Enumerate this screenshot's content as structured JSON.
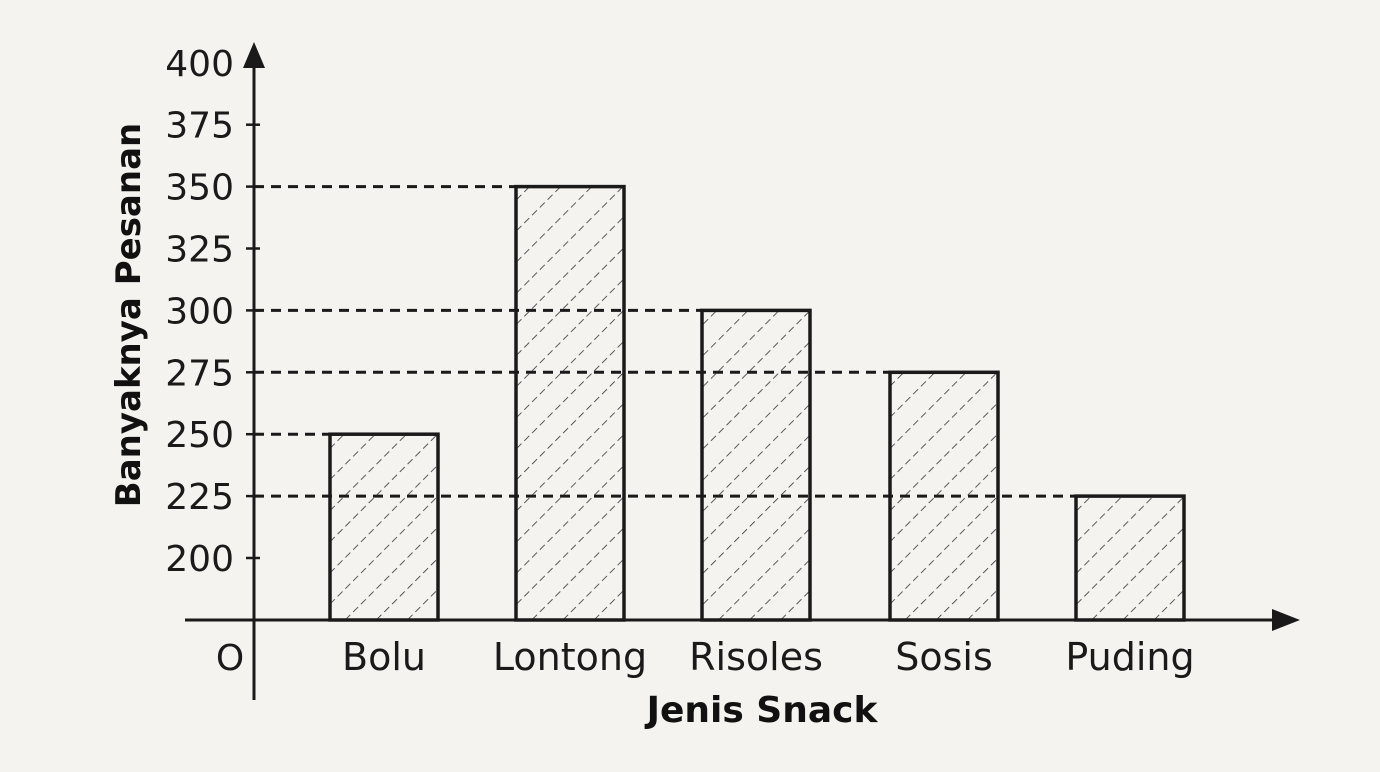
{
  "chart_data": {
    "type": "bar",
    "categories": [
      "Bolu",
      "Lontong",
      "Risoles",
      "Sosis",
      "Puding"
    ],
    "values": [
      250,
      350,
      300,
      275,
      225
    ],
    "xlabel": "Jenis Snack",
    "ylabel": "Banyaknya Pesanan",
    "yticks": [
      "200",
      "225",
      "250",
      "275",
      "300",
      "325",
      "350",
      "375",
      "400"
    ],
    "origin_label": "O",
    "ylim": [
      200,
      400
    ],
    "axis_break": true,
    "bar_fill": "hatched",
    "reference_lines": "dashed",
    "grid": false,
    "legend": "none"
  },
  "colors": {
    "ink": "#1a1a1a",
    "paper": "#f4f3f0"
  }
}
